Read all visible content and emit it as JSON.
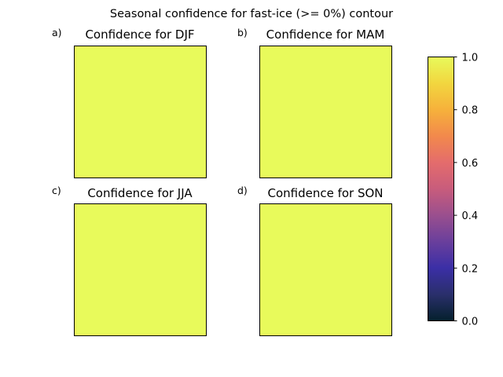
{
  "figure": {
    "title": "Seasonal confidence for fast-ice (>= 0%) contour"
  },
  "colors": {
    "field": "#e8fa5b",
    "colormap": [
      "#04202c",
      "#2a2f6b",
      "#3b2fa6",
      "#6a3f9c",
      "#9a4f8e",
      "#c85c7c",
      "#e46c6c",
      "#f2894c",
      "#f6b13b",
      "#f2d63f",
      "#e8fa5b"
    ]
  },
  "chart_data": [
    {
      "type": "heatmap",
      "panel_label": "a)",
      "title": "Confidence for DJF",
      "value": 1.0
    },
    {
      "type": "heatmap",
      "panel_label": "b)",
      "title": "Confidence for MAM",
      "value": 1.0
    },
    {
      "type": "heatmap",
      "panel_label": "c)",
      "title": "Confidence for JJA",
      "value": 1.0
    },
    {
      "type": "heatmap",
      "panel_label": "d)",
      "title": "Confidence for SON",
      "value": 1.0
    }
  ],
  "colorbar": {
    "range": [
      0.0,
      1.0
    ],
    "ticks": [
      "0.0",
      "0.2",
      "0.4",
      "0.6",
      "0.8",
      "1.0"
    ]
  }
}
